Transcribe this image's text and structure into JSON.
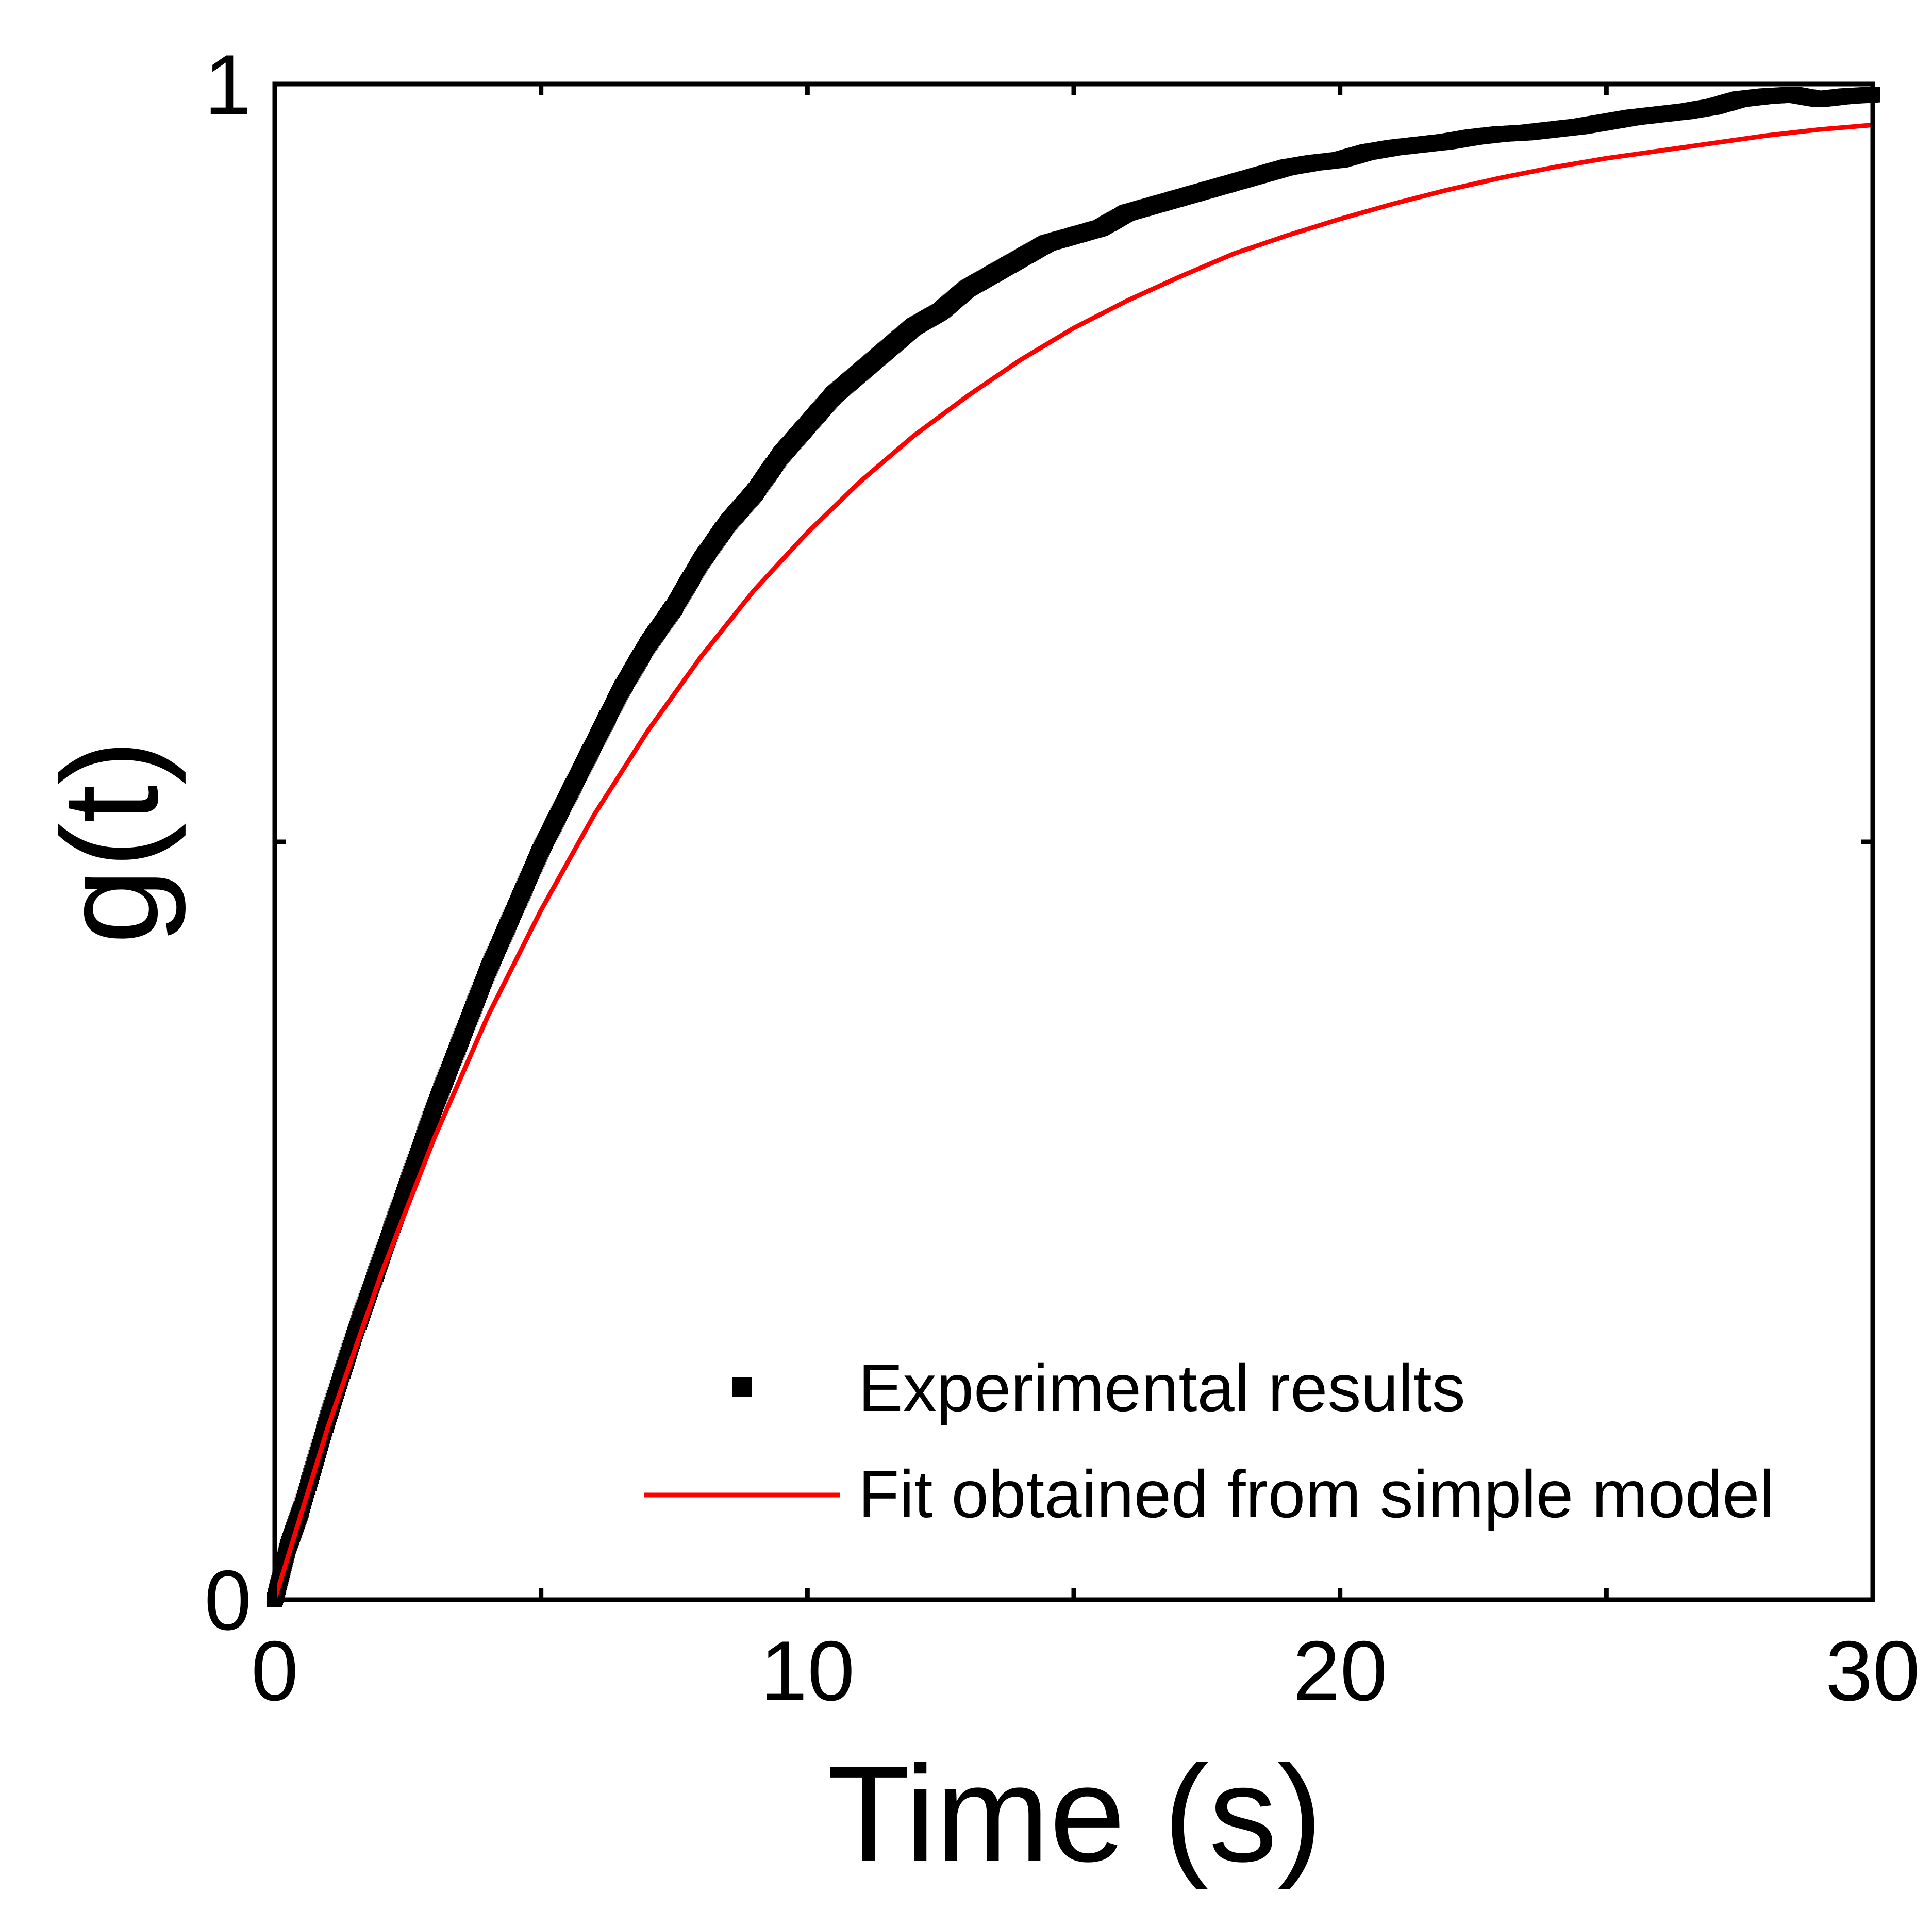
{
  "chart_data": {
    "type": "line",
    "title": "",
    "xlabel": "Time (s)",
    "ylabel": "g(t)",
    "xlim": [
      0,
      30
    ],
    "ylim": [
      0,
      1
    ],
    "x_ticks": [
      0,
      10,
      20,
      30
    ],
    "x_minor_ticks": [
      5,
      15,
      25
    ],
    "y_ticks": [
      0,
      1
    ],
    "y_minor_ticks": [
      0.5
    ],
    "x_tick_labels": [
      "0",
      "10",
      "20",
      "30"
    ],
    "y_tick_labels": [
      "0",
      "1"
    ],
    "grid": false,
    "legend_position": "bottom-right",
    "series": [
      {
        "name": "Experimental results",
        "kind": "markers",
        "color": "#000000",
        "x": [
          0,
          0.25,
          0.5,
          1,
          1.5,
          2,
          2.5,
          3,
          3.5,
          4,
          4.5,
          5,
          5.5,
          6,
          6.5,
          7,
          7.5,
          8,
          8.5,
          9,
          9.5,
          10,
          10.5,
          11,
          11.5,
          12,
          12.5,
          13,
          13.5,
          14,
          14.5,
          15,
          15.5,
          16,
          16.5,
          17,
          17.5,
          18,
          18.5,
          19,
          19.5,
          20,
          20.5,
          21,
          21.5,
          22,
          22.5,
          23,
          23.5,
          24,
          24.5,
          25,
          25.5,
          26,
          26.5,
          27,
          27.5,
          28,
          28.5,
          29,
          29.5,
          30
        ],
        "values": [
          0.0,
          0.035,
          0.06,
          0.12,
          0.175,
          0.225,
          0.275,
          0.325,
          0.37,
          0.415,
          0.455,
          0.495,
          0.53,
          0.565,
          0.6,
          0.63,
          0.655,
          0.685,
          0.71,
          0.73,
          0.755,
          0.775,
          0.795,
          0.81,
          0.825,
          0.84,
          0.85,
          0.865,
          0.875,
          0.885,
          0.895,
          0.9,
          0.905,
          0.915,
          0.92,
          0.925,
          0.93,
          0.935,
          0.94,
          0.945,
          0.948,
          0.95,
          0.955,
          0.958,
          0.96,
          0.962,
          0.965,
          0.967,
          0.968,
          0.97,
          0.972,
          0.975,
          0.978,
          0.98,
          0.982,
          0.985,
          0.99,
          0.992,
          0.993,
          0.99,
          0.992,
          0.993
        ]
      },
      {
        "name": "Fit obtained from simple model",
        "kind": "line",
        "color": "#ff0000",
        "x": [
          0,
          1,
          2,
          3,
          4,
          5,
          6,
          7,
          8,
          9,
          10,
          11,
          12,
          13,
          14,
          15,
          16,
          17,
          18,
          19,
          20,
          21,
          22,
          23,
          24,
          25,
          26,
          27,
          28,
          29,
          30
        ],
        "values": [
          0.0,
          0.114,
          0.215,
          0.305,
          0.385,
          0.455,
          0.518,
          0.573,
          0.622,
          0.666,
          0.704,
          0.738,
          0.768,
          0.794,
          0.818,
          0.839,
          0.857,
          0.873,
          0.888,
          0.9,
          0.911,
          0.921,
          0.93,
          0.938,
          0.945,
          0.951,
          0.956,
          0.961,
          0.966,
          0.97,
          0.973
        ]
      }
    ]
  }
}
